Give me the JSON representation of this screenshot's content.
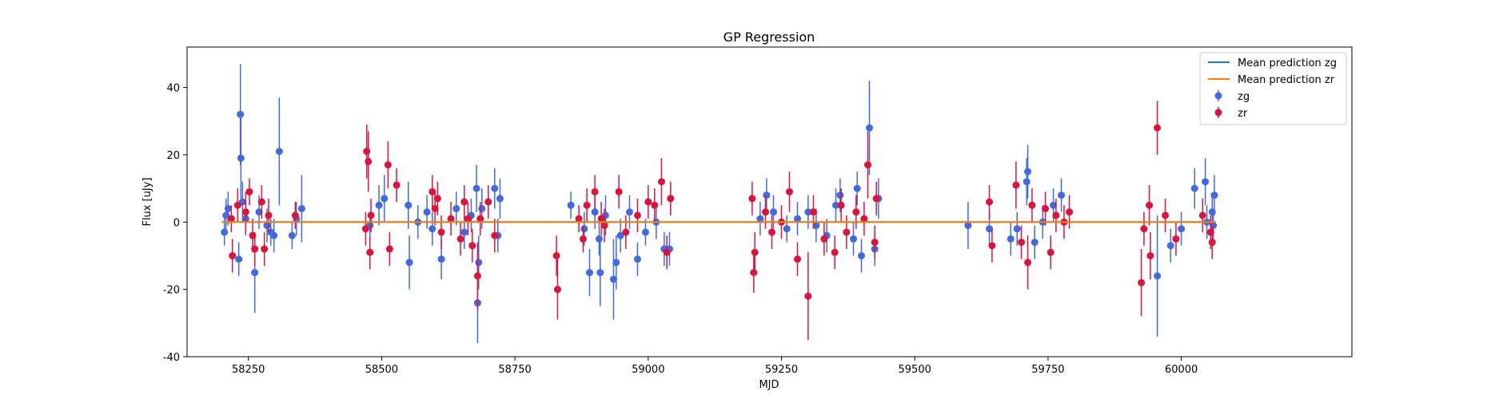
{
  "chart_data": {
    "type": "scatter",
    "title": "GP Regression",
    "xlabel": "MJD",
    "ylabel": "Flux [uJy]",
    "xlim": [
      58135,
      60320
    ],
    "ylim": [
      -40,
      52
    ],
    "xticks": [
      58250,
      58500,
      58750,
      59000,
      59250,
      59500,
      59750,
      60000
    ],
    "yticks": [
      -40,
      -20,
      0,
      20,
      40
    ],
    "legend": {
      "placement": "top-right",
      "entries": [
        "Mean prediction zg",
        "Mean prediction zr",
        "zg",
        "zr"
      ]
    },
    "colors": {
      "zg": "#4169e1",
      "zr": "#dc143c",
      "mean_zg": "#1f77b4",
      "mean_zr": "#ff7f0e"
    },
    "series": [
      {
        "name": "zg",
        "points": [
          [
            58205,
            -3,
            4
          ],
          [
            58208,
            2,
            5
          ],
          [
            58212,
            4,
            5
          ],
          [
            58232,
            -11,
            5
          ],
          [
            58235,
            32,
            15
          ],
          [
            58236,
            19,
            12
          ],
          [
            58239,
            6,
            6
          ],
          [
            58245,
            1,
            5
          ],
          [
            58262,
            -15,
            12
          ],
          [
            58270,
            3,
            5
          ],
          [
            58285,
            -1,
            5
          ],
          [
            58292,
            -3,
            4
          ],
          [
            58298,
            -4,
            5
          ],
          [
            58308,
            21,
            16
          ],
          [
            58332,
            -4,
            4
          ],
          [
            58340,
            1,
            5
          ],
          [
            58350,
            4,
            10
          ],
          [
            58478,
            -1,
            3
          ],
          [
            58495,
            5,
            6
          ],
          [
            58505,
            7,
            7
          ],
          [
            58550,
            5,
            7
          ],
          [
            58552,
            -12,
            8
          ],
          [
            58568,
            0,
            5
          ],
          [
            58585,
            3,
            5
          ],
          [
            58595,
            -2,
            5
          ],
          [
            58612,
            -11,
            6
          ],
          [
            58640,
            4,
            5
          ],
          [
            58655,
            -3,
            5
          ],
          [
            58668,
            2,
            5
          ],
          [
            58678,
            10,
            7
          ],
          [
            58680,
            -24,
            12
          ],
          [
            58682,
            -12,
            8
          ],
          [
            58688,
            4,
            6
          ],
          [
            58712,
            10,
            6
          ],
          [
            58718,
            -4,
            5
          ],
          [
            58722,
            7,
            6
          ],
          [
            58855,
            5,
            4
          ],
          [
            58880,
            -2,
            5
          ],
          [
            58890,
            -15,
            7
          ],
          [
            58900,
            3,
            5
          ],
          [
            58910,
            -15,
            10
          ],
          [
            58908,
            -5,
            5
          ],
          [
            58920,
            2,
            6
          ],
          [
            58935,
            -17,
            12
          ],
          [
            58940,
            -12,
            8
          ],
          [
            58948,
            -4,
            5
          ],
          [
            58965,
            3,
            5
          ],
          [
            58980,
            -11,
            5
          ],
          [
            58995,
            -3,
            4
          ],
          [
            59015,
            0,
            5
          ],
          [
            59030,
            -8,
            5
          ],
          [
            59040,
            -8,
            5
          ],
          [
            59210,
            1,
            5
          ],
          [
            59222,
            8,
            5
          ],
          [
            59235,
            3,
            5
          ],
          [
            59260,
            -2,
            4
          ],
          [
            59280,
            1,
            5
          ],
          [
            59300,
            3,
            5
          ],
          [
            59315,
            -1,
            5
          ],
          [
            59335,
            -4,
            5
          ],
          [
            59352,
            5,
            5
          ],
          [
            59360,
            8,
            5
          ],
          [
            59385,
            -5,
            5
          ],
          [
            59392,
            10,
            5
          ],
          [
            59400,
            -10,
            5
          ],
          [
            59415,
            28,
            14
          ],
          [
            59425,
            -8,
            5
          ],
          [
            59432,
            7,
            6
          ],
          [
            59600,
            -1,
            7
          ],
          [
            59640,
            -2,
            5
          ],
          [
            59680,
            -5,
            5
          ],
          [
            59692,
            -2,
            5
          ],
          [
            59710,
            12,
            7
          ],
          [
            59712,
            15,
            8
          ],
          [
            59725,
            -6,
            5
          ],
          [
            59740,
            0,
            5
          ],
          [
            59760,
            5,
            5
          ],
          [
            59775,
            8,
            5
          ],
          [
            59955,
            -16,
            18
          ],
          [
            59980,
            -7,
            5
          ],
          [
            60000,
            -2,
            5
          ],
          [
            60025,
            10,
            6
          ],
          [
            60045,
            12,
            7
          ],
          [
            60048,
            0,
            5
          ],
          [
            60058,
            3,
            5
          ],
          [
            60060,
            -1,
            5
          ],
          [
            60062,
            8,
            6
          ]
        ]
      },
      {
        "name": "zr",
        "points": [
          [
            58218,
            1,
            4
          ],
          [
            58220,
            -10,
            5
          ],
          [
            58230,
            5,
            5
          ],
          [
            58245,
            3,
            6
          ],
          [
            58252,
            9,
            4
          ],
          [
            58258,
            -4,
            5
          ],
          [
            58262,
            -8,
            5
          ],
          [
            58275,
            6,
            5
          ],
          [
            58280,
            -8,
            5
          ],
          [
            58288,
            2,
            5
          ],
          [
            58338,
            2,
            4
          ],
          [
            58470,
            -2,
            5
          ],
          [
            58472,
            21,
            8
          ],
          [
            58475,
            18,
            9
          ],
          [
            58478,
            -9,
            5
          ],
          [
            58480,
            2,
            5
          ],
          [
            58512,
            17,
            7
          ],
          [
            58515,
            -8,
            5
          ],
          [
            58528,
            11,
            5
          ],
          [
            58595,
            9,
            5
          ],
          [
            58600,
            4,
            5
          ],
          [
            58605,
            7,
            5
          ],
          [
            58612,
            -3,
            5
          ],
          [
            58630,
            1,
            5
          ],
          [
            58648,
            -5,
            5
          ],
          [
            58655,
            6,
            5
          ],
          [
            58662,
            1,
            5
          ],
          [
            58670,
            -7,
            5
          ],
          [
            58680,
            -16,
            10
          ],
          [
            58685,
            1,
            5
          ],
          [
            58700,
            6,
            5
          ],
          [
            58712,
            -4,
            5
          ],
          [
            58828,
            -10,
            6
          ],
          [
            58830,
            -20,
            9
          ],
          [
            58870,
            1,
            4
          ],
          [
            58878,
            -5,
            4
          ],
          [
            58885,
            5,
            5
          ],
          [
            58900,
            9,
            5
          ],
          [
            58912,
            1,
            5
          ],
          [
            58918,
            -1,
            5
          ],
          [
            58945,
            9,
            5
          ],
          [
            58958,
            -3,
            5
          ],
          [
            58980,
            2,
            5
          ],
          [
            59000,
            6,
            5
          ],
          [
            59012,
            5,
            5
          ],
          [
            59025,
            12,
            7
          ],
          [
            59035,
            -9,
            5
          ],
          [
            59042,
            7,
            5
          ],
          [
            59195,
            7,
            5
          ],
          [
            59198,
            -15,
            6
          ],
          [
            59200,
            -9,
            6
          ],
          [
            59220,
            3,
            5
          ],
          [
            59232,
            -3,
            5
          ],
          [
            59250,
            0,
            5
          ],
          [
            59265,
            9,
            6
          ],
          [
            59280,
            -11,
            5
          ],
          [
            59300,
            -22,
            13
          ],
          [
            59310,
            3,
            5
          ],
          [
            59330,
            -5,
            5
          ],
          [
            59350,
            -9,
            5
          ],
          [
            59362,
            5,
            5
          ],
          [
            59372,
            -3,
            5
          ],
          [
            59390,
            3,
            5
          ],
          [
            59405,
            1,
            5
          ],
          [
            59412,
            17,
            10
          ],
          [
            59425,
            -6,
            5
          ],
          [
            59428,
            7,
            5
          ],
          [
            59640,
            6,
            5
          ],
          [
            59645,
            -7,
            5
          ],
          [
            59690,
            11,
            7
          ],
          [
            59700,
            -6,
            5
          ],
          [
            59712,
            -12,
            8
          ],
          [
            59720,
            5,
            5
          ],
          [
            59745,
            4,
            5
          ],
          [
            59755,
            -9,
            5
          ],
          [
            59765,
            2,
            5
          ],
          [
            59780,
            0,
            5
          ],
          [
            59790,
            3,
            5
          ],
          [
            59925,
            -18,
            10
          ],
          [
            59930,
            -2,
            5
          ],
          [
            59940,
            5,
            6
          ],
          [
            59942,
            -10,
            7
          ],
          [
            59955,
            28,
            8
          ],
          [
            59970,
            2,
            5
          ],
          [
            59990,
            -5,
            5
          ],
          [
            60040,
            2,
            5
          ],
          [
            60055,
            -3,
            5
          ],
          [
            60058,
            -6,
            5
          ]
        ]
      }
    ]
  }
}
